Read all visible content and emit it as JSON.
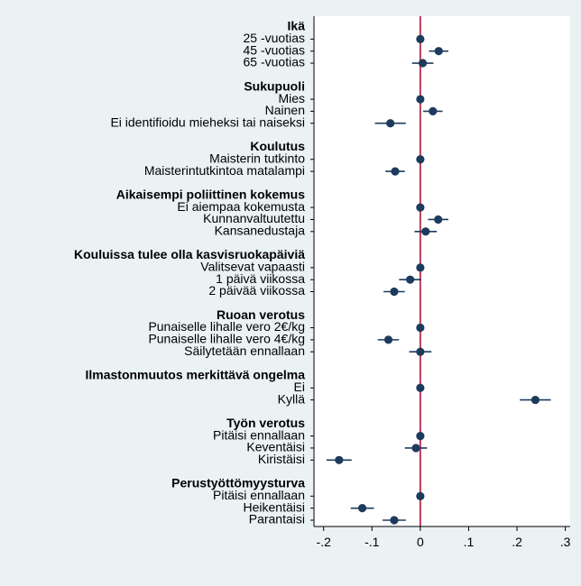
{
  "chart_data": {
    "type": "coefficient-plot",
    "xlim": [
      -0.22,
      0.31
    ],
    "xticks": [
      -0.2,
      -0.1,
      0,
      0.1,
      0.2,
      0.3
    ],
    "xtick_labels": [
      "-.2",
      "-.1",
      "0",
      ".1",
      ".2",
      ".3"
    ],
    "reference_line": 0,
    "colors": {
      "background": "#eaf2f3",
      "plot_bg": "#ffffff",
      "marker": "#1d3b5c",
      "reference": "#c0395a"
    },
    "groups": [
      {
        "title": "Ikä",
        "items": [
          {
            "label": "25 -vuotias",
            "est": 0.0,
            "lo": 0.0,
            "hi": 0.0
          },
          {
            "label": "45 -vuotias",
            "est": 0.038,
            "lo": 0.018,
            "hi": 0.058
          },
          {
            "label": "65 -vuotias",
            "est": 0.005,
            "lo": -0.017,
            "hi": 0.027
          }
        ]
      },
      {
        "title": "Sukupuoli",
        "items": [
          {
            "label": "Mies",
            "est": 0.0,
            "lo": 0.0,
            "hi": 0.0
          },
          {
            "label": "Nainen",
            "est": 0.026,
            "lo": 0.006,
            "hi": 0.046
          },
          {
            "label": "Ei identifioidu mieheksi tai naiseksi",
            "est": -0.062,
            "lo": -0.094,
            "hi": -0.03
          }
        ]
      },
      {
        "title": "Koulutus",
        "items": [
          {
            "label": "Maisterin tutkinto",
            "est": 0.0,
            "lo": 0.0,
            "hi": 0.0
          },
          {
            "label": "Maisterintutkintoa matalampi",
            "est": -0.052,
            "lo": -0.072,
            "hi": -0.032
          }
        ]
      },
      {
        "title": "Aikaisempi poliittinen kokemus",
        "items": [
          {
            "label": "Ei aiempaa kokemusta",
            "est": 0.0,
            "lo": 0.0,
            "hi": 0.0
          },
          {
            "label": "Kunnanvaltuutettu",
            "est": 0.037,
            "lo": 0.016,
            "hi": 0.058
          },
          {
            "label": "Kansanedustaja",
            "est": 0.011,
            "lo": -0.012,
            "hi": 0.034
          }
        ]
      },
      {
        "title": "Kouluissa tulee olla kasvisruokapäiviä",
        "items": [
          {
            "label": "Valitsevat vapaasti",
            "est": 0.0,
            "lo": 0.0,
            "hi": 0.0
          },
          {
            "label": "1 päivä viikossa",
            "est": -0.021,
            "lo": -0.044,
            "hi": 0.002
          },
          {
            "label": "2 päivää viikossa",
            "est": -0.054,
            "lo": -0.076,
            "hi": -0.032
          }
        ]
      },
      {
        "title": "Ruoan verotus",
        "items": [
          {
            "label": "Punaiselle lihalle vero 2€/kg",
            "est": 0.0,
            "lo": 0.0,
            "hi": 0.0
          },
          {
            "label": "Punaiselle lihalle vero 4€/kg",
            "est": -0.066,
            "lo": -0.088,
            "hi": -0.044
          },
          {
            "label": "Säilytetään ennallaan",
            "est": 0.0,
            "lo": -0.023,
            "hi": 0.023
          }
        ]
      },
      {
        "title": "Ilmastonmuutos merkittävä ongelma",
        "items": [
          {
            "label": "Ei",
            "est": 0.0,
            "lo": 0.0,
            "hi": 0.0
          },
          {
            "label": "Kyllä",
            "est": 0.238,
            "lo": 0.206,
            "hi": 0.27
          }
        ]
      },
      {
        "title": "Työn verotus",
        "items": [
          {
            "label": "Pitäisi ennallaan",
            "est": 0.0,
            "lo": 0.0,
            "hi": 0.0
          },
          {
            "label": "Keventäisi",
            "est": -0.009,
            "lo": -0.032,
            "hi": 0.014
          },
          {
            "label": "Kiristäisi",
            "est": -0.168,
            "lo": -0.194,
            "hi": -0.142
          }
        ]
      },
      {
        "title": "Perustyöttömyysturva",
        "items": [
          {
            "label": "Pitäisi ennallaan",
            "est": 0.0,
            "lo": 0.0,
            "hi": 0.0
          },
          {
            "label": "Heikentäisi",
            "est": -0.12,
            "lo": -0.144,
            "hi": -0.096
          },
          {
            "label": "Parantaisi",
            "est": -0.054,
            "lo": -0.078,
            "hi": -0.03
          }
        ]
      }
    ]
  }
}
